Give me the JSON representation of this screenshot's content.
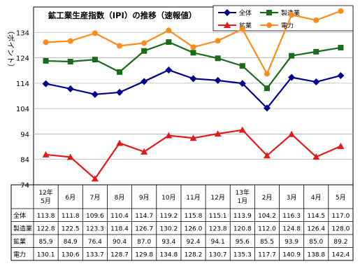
{
  "chart_data": {
    "type": "line",
    "title": "鉱工業生産指数（IPI）の推移（速報値）",
    "ylabel": "（ポイント）",
    "categories": [
      "12年\n5月",
      "6月",
      "7月",
      "8月",
      "9月",
      "10月",
      "11月",
      "12月",
      "13年\n1月",
      "2月",
      "3月",
      "4月",
      "5月"
    ],
    "ylim": [
      74,
      144
    ],
    "yticks": [
      74,
      84,
      94,
      104,
      114,
      124,
      134
    ],
    "grid": true,
    "legend_position": "top-right",
    "series": [
      {
        "name": "全体",
        "color": "#00008b",
        "marker": "diamond",
        "values": [
          113.8,
          111.8,
          109.6,
          110.4,
          114.7,
          119.2,
          115.8,
          115.1,
          113.9,
          104.2,
          116.3,
          114.5,
          117.0
        ]
      },
      {
        "name": "製造業",
        "color": "#1a6b1a",
        "marker": "square",
        "values": [
          122.8,
          122.5,
          123.3,
          118.4,
          126.7,
          130.2,
          126.0,
          123.8,
          120.8,
          112.0,
          124.8,
          126.4,
          128.0
        ]
      },
      {
        "name": "鉱業",
        "color": "#e31a1a",
        "marker": "triangle",
        "values": [
          85.9,
          84.9,
          76.4,
          90.4,
          87.0,
          93.4,
          92.4,
          94.1,
          95.6,
          85.5,
          93.9,
          85.0,
          89.2
        ]
      },
      {
        "name": "電力",
        "color": "#ff8c1a",
        "marker": "circle",
        "values": [
          130.1,
          130.6,
          133.7,
          128.7,
          129.8,
          134.8,
          128.2,
          130.7,
          135.3,
          117.7,
          140.9,
          138.8,
          142.4
        ]
      }
    ]
  },
  "table": {
    "rows": [
      {
        "label": "全体",
        "values": [
          "113.8",
          "111.8",
          "109.6",
          "110.4",
          "114.7",
          "119.2",
          "115.8",
          "115.1",
          "113.9",
          "104.2",
          "116.3",
          "114.5",
          "117.0"
        ]
      },
      {
        "label": "製造業",
        "values": [
          "122.8",
          "122.5",
          "123.3",
          "118.4",
          "126.7",
          "130.2",
          "126.0",
          "123.8",
          "120.8",
          "112.0",
          "124.8",
          "126.4",
          "128.0"
        ]
      },
      {
        "label": "鉱業",
        "values": [
          "85.9",
          "84.9",
          "76.4",
          "90.4",
          "87.0",
          "93.4",
          "92.4",
          "94.1",
          "95.6",
          "85.5",
          "93.9",
          "85.0",
          "89.2"
        ]
      },
      {
        "label": "電力",
        "values": [
          "130.1",
          "130.6",
          "133.7",
          "128.7",
          "129.8",
          "134.8",
          "128.2",
          "130.7",
          "135.3",
          "117.7",
          "140.9",
          "138.8",
          "142.4"
        ]
      }
    ]
  }
}
